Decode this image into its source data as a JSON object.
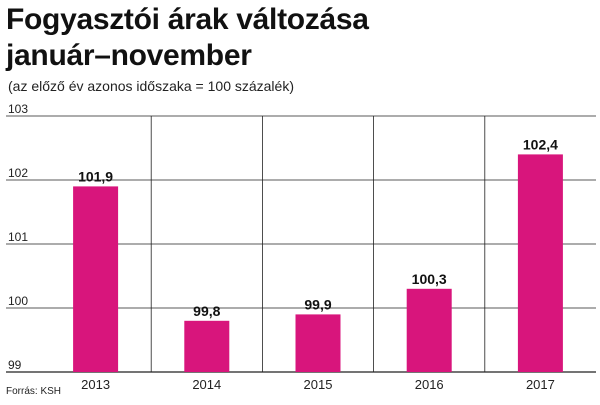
{
  "title_line1": "Fogyasztói árak változása",
  "title_line2": "január–november",
  "subtitle": "(az előző év azonos időszaka = 100 százalék)",
  "source": "Forrás: KSH",
  "colors": {
    "bar": "#d8157c",
    "grid": "#222222"
  },
  "chart_data": {
    "type": "bar",
    "title": "Fogyasztói árak változása január–november",
    "subtitle": "(az előző év azonos időszaka = 100 százalék)",
    "categories": [
      "2013",
      "2014",
      "2015",
      "2016",
      "2017"
    ],
    "values": [
      101.9,
      99.8,
      99.9,
      100.3,
      102.4
    ],
    "value_labels": [
      "101,9",
      "99,8",
      "99,9",
      "100,3",
      "102,4"
    ],
    "xlabel": "",
    "ylabel": "",
    "ylim": [
      99,
      103
    ],
    "yticks": [
      99,
      100,
      101,
      102,
      103
    ],
    "grid": true
  }
}
